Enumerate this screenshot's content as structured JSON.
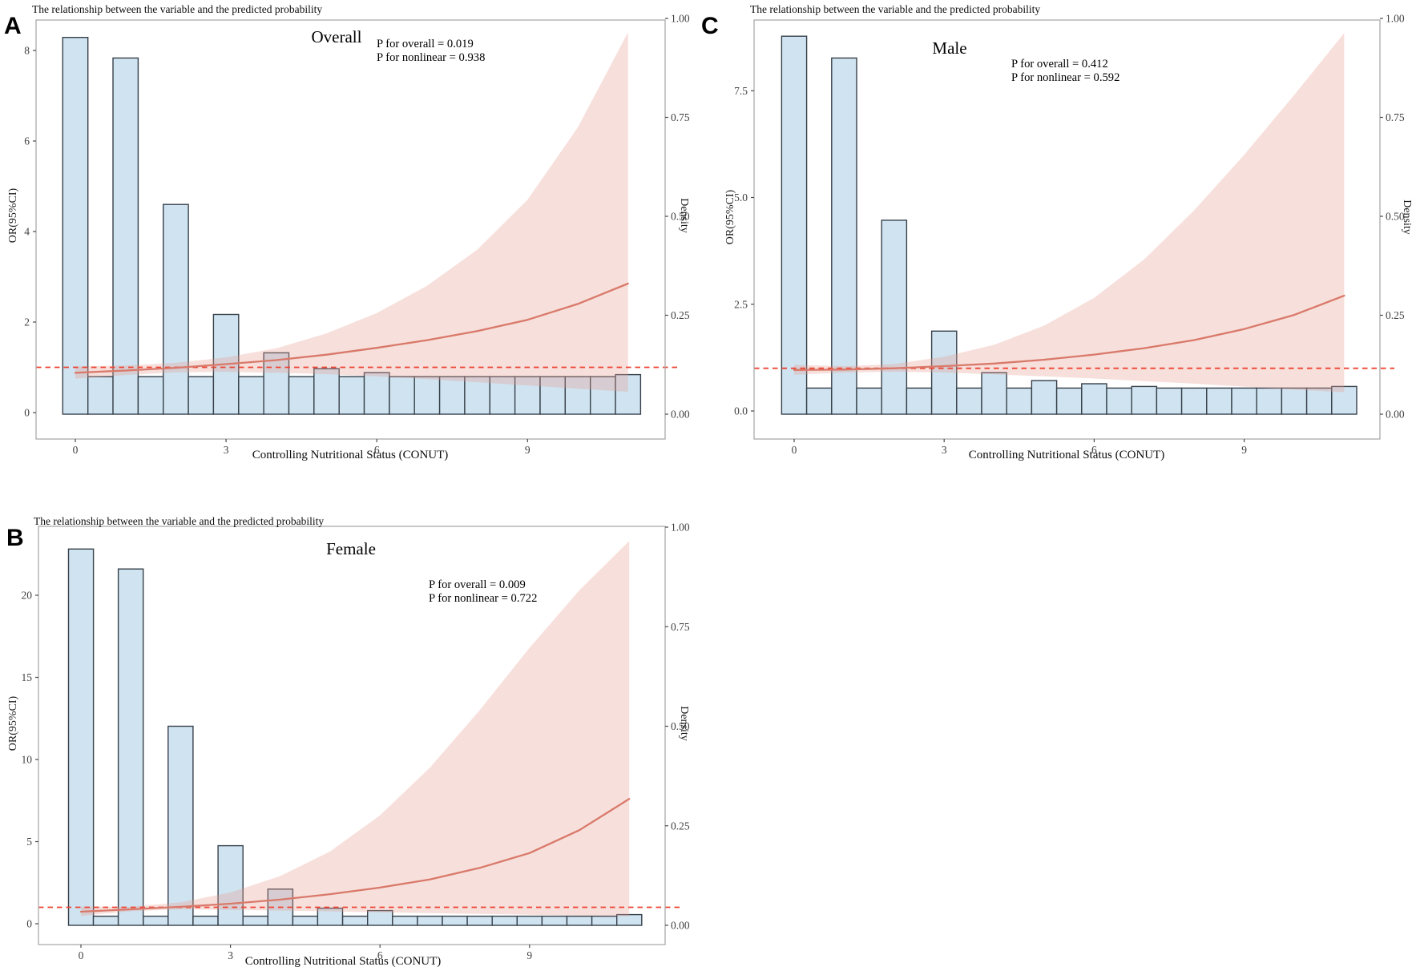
{
  "figure": {
    "background": "#ffffff",
    "colors": {
      "bar_fill": "#cfe4f0",
      "bar_stroke": "#37404a",
      "ribbon_fill": "#e59a8e",
      "spline_line": "#d9796a",
      "reference_dashed": "#ee4433",
      "panel_border": "#ababab",
      "tick_color": "#4a4a4a"
    }
  },
  "chart_data": {
    "type": "line+area+bar (restricted cubic spline odds-ratio curves with CONUT density histograms)",
    "panels": [
      {
        "panel_letter": "A",
        "header": "The relationship between the variable and the predicted probability",
        "group_label": "Overall",
        "p_overall": "P for overall = 0.019",
        "p_nonlinear": "P for nonlinear = 0.938",
        "x_axis": {
          "title": "Controlling Nutritional Status (CONUT)",
          "ticks": [
            0,
            3,
            6,
            9
          ],
          "range": [
            -0.8,
            11.75
          ]
        },
        "or_axis": {
          "title": "OR(95%CI)",
          "tick_labels": [
            "0",
            "2",
            "4",
            "6",
            "8"
          ]
        },
        "density_axis": {
          "title": "Density",
          "tick_labels": [
            "0.00",
            "0.25",
            "0.50",
            "0.75",
            "1.00"
          ]
        },
        "reference_or": 1,
        "histogram": {
          "start": 0,
          "step": 0.5,
          "bar_width": 0.5,
          "density": [
            0.952,
            0.095,
            0.9,
            0.095,
            0.53,
            0.095,
            0.252,
            0.095,
            0.155,
            0.095,
            0.115,
            0.095,
            0.105,
            0.095,
            0.095,
            0.095,
            0.095,
            0.095,
            0.095,
            0.095,
            0.095,
            0.095,
            0.1
          ]
        },
        "spline": {
          "x": [
            0,
            1,
            2,
            3,
            4,
            5,
            6,
            7,
            8,
            9,
            10,
            11
          ],
          "or": [
            0.88,
            0.93,
            0.99,
            1.07,
            1.16,
            1.28,
            1.43,
            1.6,
            1.8,
            2.05,
            2.4,
            2.85
          ],
          "upper": [
            1.02,
            1.04,
            1.1,
            1.22,
            1.42,
            1.75,
            2.2,
            2.8,
            3.6,
            4.7,
            6.3,
            8.4
          ],
          "lower": [
            0.75,
            0.83,
            0.89,
            0.9,
            0.88,
            0.85,
            0.8,
            0.74,
            0.67,
            0.6,
            0.53,
            0.46
          ]
        }
      },
      {
        "panel_letter": "B",
        "header": "The relationship between the variable and the predicted probability",
        "group_label": "Female",
        "p_overall": "P for overall = 0.009",
        "p_nonlinear": "P for nonlinear = 0.722",
        "x_axis": {
          "title": "Controlling Nutritional Status (CONUT)",
          "ticks": [
            0,
            3,
            6,
            9
          ],
          "range": [
            -0.8,
            11.75
          ]
        },
        "or_axis": {
          "title": "OR(95%CI)",
          "tick_labels": [
            "0",
            "5",
            "10",
            "15",
            "20"
          ]
        },
        "density_axis": {
          "title": "Density",
          "tick_labels": [
            "0.00",
            "0.25",
            "0.50",
            "0.75",
            "1.00"
          ]
        },
        "reference_or": 1,
        "histogram": {
          "start": 0,
          "step": 0.5,
          "bar_width": 0.5,
          "density": [
            0.945,
            0.023,
            0.895,
            0.023,
            0.5,
            0.023,
            0.2,
            0.023,
            0.091,
            0.023,
            0.043,
            0.023,
            0.037,
            0.023,
            0.023,
            0.023,
            0.023,
            0.023,
            0.023,
            0.023,
            0.023,
            0.023,
            0.027
          ]
        },
        "spline": {
          "x": [
            0,
            1,
            2,
            3,
            4,
            5,
            6,
            7,
            8,
            9,
            10,
            11
          ],
          "or": [
            0.73,
            0.88,
            1.03,
            1.22,
            1.47,
            1.8,
            2.2,
            2.7,
            3.4,
            4.3,
            5.7,
            7.6
          ],
          "upper": [
            1.05,
            1.03,
            1.3,
            1.9,
            2.9,
            4.4,
            6.6,
            9.5,
            13.0,
            16.8,
            20.3,
            23.3
          ],
          "lower": [
            0.48,
            0.76,
            0.88,
            0.84,
            0.8,
            0.75,
            0.7,
            0.65,
            0.6,
            0.55,
            0.5,
            0.46
          ]
        }
      },
      {
        "panel_letter": "C",
        "header": "The relationship between the variable and the predicted probability",
        "group_label": "Male",
        "p_overall": "P for overall = 0.412",
        "p_nonlinear": "P for nonlinear = 0.592",
        "x_axis": {
          "title": "Controlling Nutritional Status (CONUT)",
          "ticks": [
            0,
            3,
            6,
            9
          ],
          "range": [
            -0.8,
            11.75
          ]
        },
        "or_axis": {
          "title": "OR(95%CI)",
          "tick_labels": [
            "0.0",
            "2.5",
            "5.0",
            "7.5"
          ]
        },
        "density_axis": {
          "title": "Density",
          "tick_labels": [
            "0.00",
            "0.25",
            "0.50",
            "0.75",
            "1.00"
          ]
        },
        "reference_or": 1,
        "histogram": {
          "start": 0,
          "step": 0.5,
          "bar_width": 0.5,
          "density": [
            0.955,
            0.066,
            0.9,
            0.066,
            0.49,
            0.066,
            0.21,
            0.066,
            0.105,
            0.066,
            0.085,
            0.066,
            0.077,
            0.066,
            0.07,
            0.066,
            0.066,
            0.066,
            0.066,
            0.066,
            0.066,
            0.066,
            0.07
          ]
        },
        "spline": {
          "x": [
            0,
            1,
            2,
            3,
            4,
            5,
            6,
            7,
            8,
            9,
            10,
            11
          ],
          "or": [
            0.96,
            0.97,
            1.0,
            1.05,
            1.11,
            1.2,
            1.32,
            1.47,
            1.66,
            1.92,
            2.25,
            2.7
          ],
          "upper": [
            1.08,
            1.05,
            1.1,
            1.27,
            1.55,
            2.0,
            2.65,
            3.55,
            4.7,
            6.0,
            7.4,
            8.85
          ],
          "lower": [
            0.85,
            0.9,
            0.92,
            0.9,
            0.86,
            0.81,
            0.76,
            0.7,
            0.64,
            0.57,
            0.5,
            0.44
          ]
        }
      }
    ]
  }
}
